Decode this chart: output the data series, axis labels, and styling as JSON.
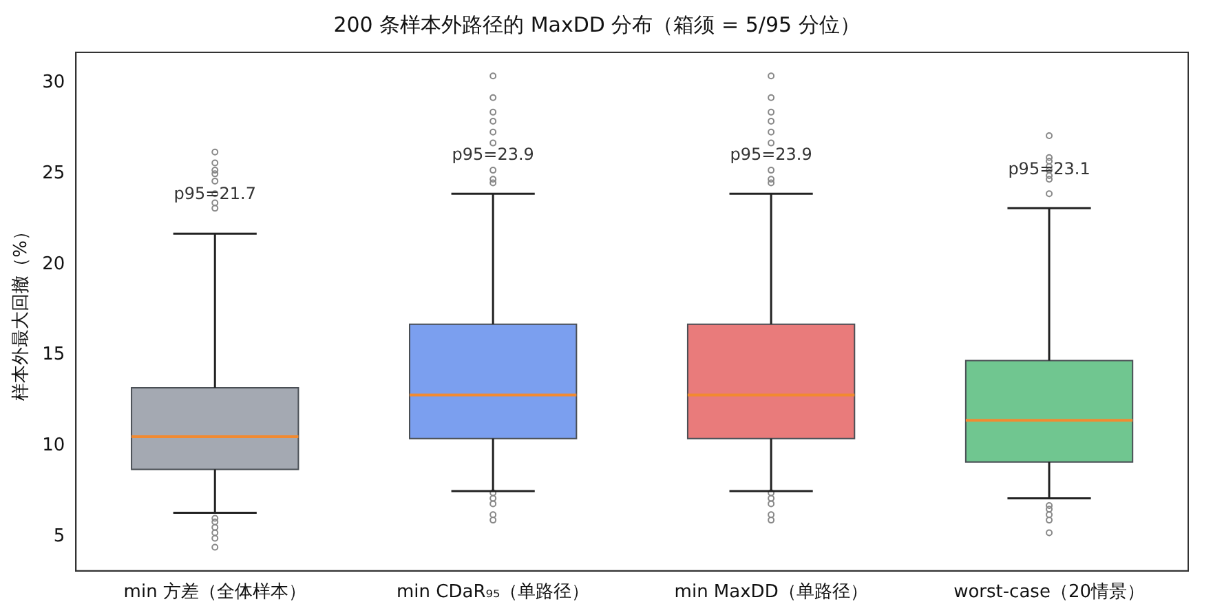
{
  "chart_data": {
    "type": "box",
    "title": "200 条样本外路径的 MaxDD 分布（箱须 = 5/95 分位）",
    "ylabel": "样本外最大回撤（%）",
    "categories": [
      "min 方差（全体样本）",
      "min CDaR₉₅（单路径）",
      "min MaxDD（单路径）",
      "worst-case（20情景）"
    ],
    "colors": [
      "#a4a9b2",
      "#7b9fef",
      "#e97b7b",
      "#70c690"
    ],
    "boxes": [
      {
        "low": 6.3,
        "q1": 8.7,
        "median": 10.5,
        "q3": 13.2,
        "high": 21.7,
        "outliers": [
          6.0,
          5.8,
          5.5,
          5.2,
          4.9,
          4.4,
          26.2,
          25.6,
          25.2,
          25.0,
          24.6,
          23.9,
          23.4,
          23.1
        ]
      },
      {
        "low": 7.5,
        "q1": 10.4,
        "median": 12.8,
        "q3": 16.7,
        "high": 23.9,
        "outliers": [
          7.4,
          7.1,
          6.8,
          6.2,
          5.9,
          30.4,
          29.2,
          28.4,
          27.9,
          27.3,
          26.7,
          25.2,
          24.7,
          24.5
        ]
      },
      {
        "low": 7.5,
        "q1": 10.4,
        "median": 12.8,
        "q3": 16.7,
        "high": 23.9,
        "outliers": [
          7.4,
          7.1,
          6.8,
          6.2,
          5.9,
          30.4,
          29.2,
          28.4,
          27.9,
          27.3,
          26.7,
          25.2,
          24.7,
          24.5
        ]
      },
      {
        "low": 7.1,
        "q1": 9.1,
        "median": 11.4,
        "q3": 14.7,
        "high": 23.1,
        "outliers": [
          6.7,
          6.5,
          6.2,
          5.9,
          5.2,
          27.1,
          25.9,
          25.7,
          25.4,
          25.2,
          24.9,
          24.7,
          23.9
        ]
      }
    ],
    "annotations": [
      "p95=21.7",
      "p95=23.9",
      "p95=23.9",
      "p95=23.1"
    ],
    "ylim": [
      3.1,
      31.7
    ],
    "yticks": [
      5,
      10,
      15,
      20,
      25,
      30
    ],
    "grid": false,
    "legend": false
  }
}
